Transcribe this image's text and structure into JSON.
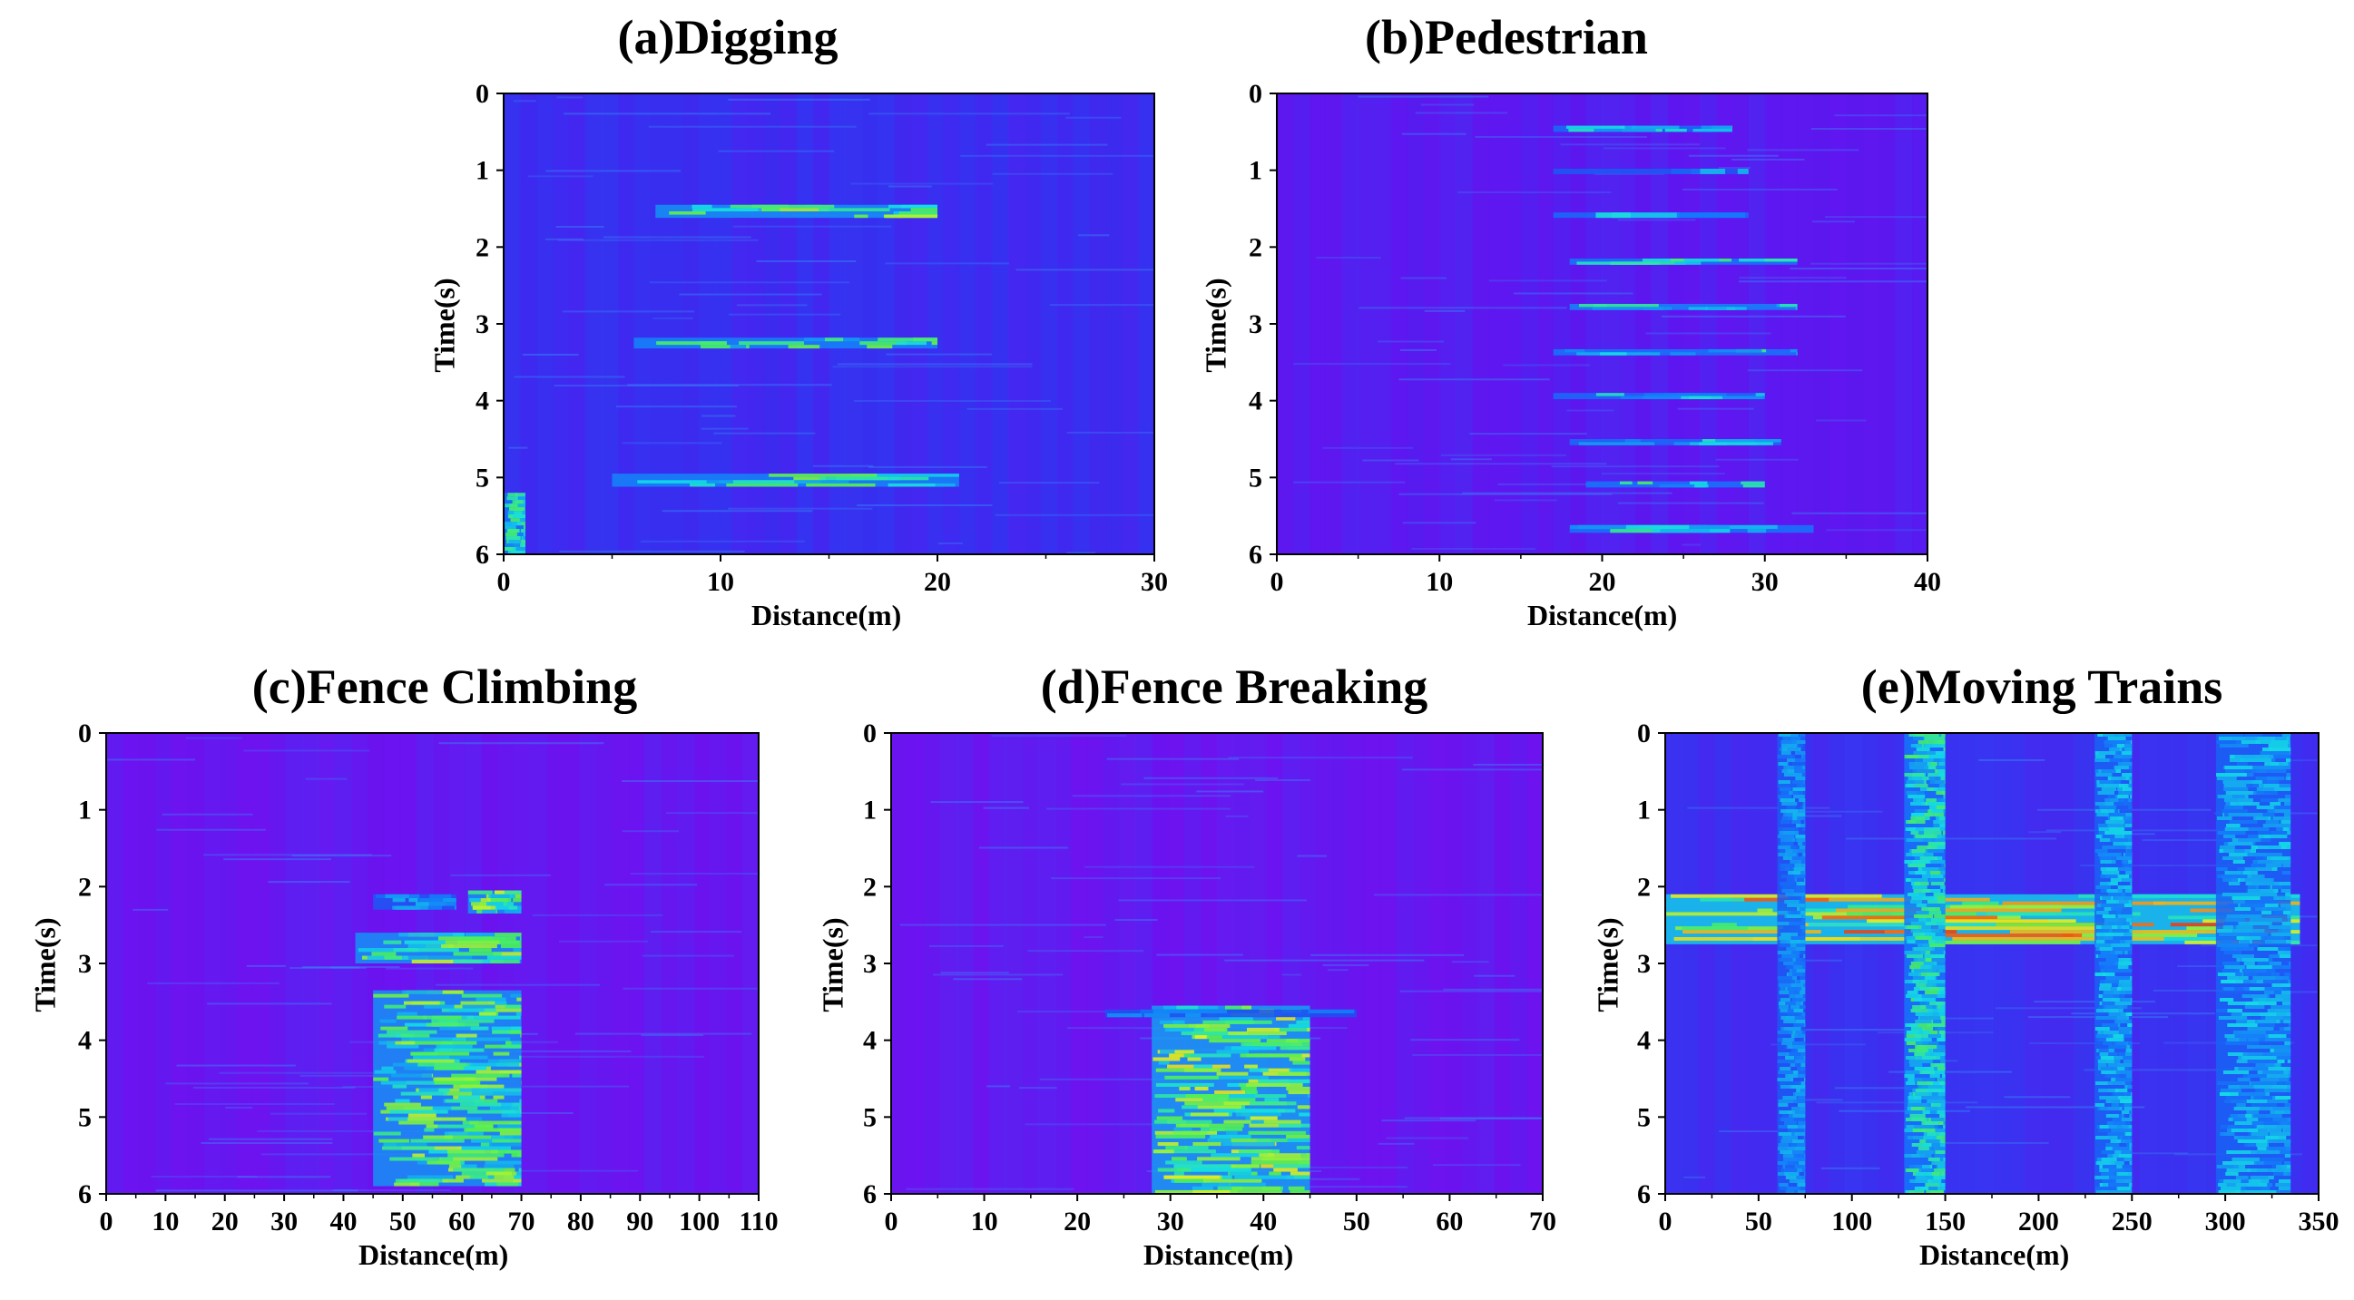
{
  "chart_data": [
    {
      "type": "heatmap",
      "title": "(a)Digging",
      "xlabel": "Distance(m)",
      "ylabel": "Time(s)",
      "xlim": [
        0,
        30
      ],
      "ylim": [
        0,
        6
      ],
      "xticks": [
        "0",
        "10",
        "20",
        "30"
      ],
      "yticks": [
        "0",
        "1",
        "2",
        "3",
        "4",
        "5",
        "6"
      ],
      "xtick_values": [
        0,
        10,
        20,
        30
      ],
      "background": "#3a2cf0",
      "events": [
        {
          "x0": 7,
          "x1": 20,
          "t0": 1.45,
          "t1": 1.62,
          "intensity": 0.55
        },
        {
          "x0": 6,
          "x1": 20,
          "t0": 3.18,
          "t1": 3.32,
          "intensity": 0.5
        },
        {
          "x0": 5,
          "x1": 21,
          "t0": 4.95,
          "t1": 5.12,
          "intensity": 0.5
        },
        {
          "x0": 0,
          "x1": 1,
          "t0": 5.2,
          "t1": 6,
          "intensity": 0.45
        }
      ]
    },
    {
      "type": "heatmap",
      "title": "(b)Pedestrian",
      "xlabel": "Distance(m)",
      "ylabel": "Time(s)",
      "xlim": [
        0,
        40
      ],
      "ylim": [
        0,
        6
      ],
      "xticks": [
        "0",
        "10",
        "20",
        "30",
        "40"
      ],
      "yticks": [
        "0",
        "1",
        "2",
        "3",
        "4",
        "5",
        "6"
      ],
      "xtick_values": [
        0,
        10,
        20,
        30,
        40
      ],
      "background": "#5b18f0",
      "events": [
        {
          "x0": 17,
          "x1": 28,
          "t0": 0.42,
          "t1": 0.5,
          "intensity": 0.4
        },
        {
          "x0": 17,
          "x1": 29,
          "t0": 0.98,
          "t1": 1.05,
          "intensity": 0.3
        },
        {
          "x0": 17,
          "x1": 29,
          "t0": 1.55,
          "t1": 1.62,
          "intensity": 0.4
        },
        {
          "x0": 18,
          "x1": 32,
          "t0": 2.15,
          "t1": 2.23,
          "intensity": 0.45
        },
        {
          "x0": 18,
          "x1": 32,
          "t0": 2.74,
          "t1": 2.82,
          "intensity": 0.5
        },
        {
          "x0": 17,
          "x1": 32,
          "t0": 3.33,
          "t1": 3.41,
          "intensity": 0.45
        },
        {
          "x0": 17,
          "x1": 30,
          "t0": 3.9,
          "t1": 3.98,
          "intensity": 0.4
        },
        {
          "x0": 18,
          "x1": 31,
          "t0": 4.5,
          "t1": 4.58,
          "intensity": 0.4
        },
        {
          "x0": 19,
          "x1": 30,
          "t0": 5.05,
          "t1": 5.13,
          "intensity": 0.45
        },
        {
          "x0": 18,
          "x1": 33,
          "t0": 5.62,
          "t1": 5.72,
          "intensity": 0.45
        }
      ]
    },
    {
      "type": "heatmap",
      "title": "(c)Fence Climbing",
      "xlabel": "Distance(m)",
      "ylabel": "Time(s)",
      "xlim": [
        0,
        110
      ],
      "ylim": [
        0,
        6
      ],
      "xticks": [
        "0",
        "10",
        "20",
        "30",
        "40",
        "50",
        "60",
        "70",
        "80",
        "90",
        "100",
        "110"
      ],
      "yticks": [
        "0",
        "1",
        "2",
        "3",
        "4",
        "5",
        "6"
      ],
      "xtick_values": [
        0,
        10,
        20,
        30,
        40,
        50,
        60,
        70,
        80,
        90,
        100,
        110
      ],
      "background": "#6a14f0",
      "events": [
        {
          "x0": 61,
          "x1": 70,
          "t0": 2.05,
          "t1": 2.35,
          "intensity": 0.55
        },
        {
          "x0": 45,
          "x1": 59,
          "t0": 2.1,
          "t1": 2.3,
          "intensity": 0.3
        },
        {
          "x0": 42,
          "x1": 70,
          "t0": 2.6,
          "t1": 3.0,
          "intensity": 0.55
        },
        {
          "x0": 45,
          "x1": 70,
          "t0": 3.35,
          "t1": 5.9,
          "intensity": 0.55
        }
      ]
    },
    {
      "type": "heatmap",
      "title": "(d)Fence Breaking",
      "xlabel": "Distance(m)",
      "ylabel": "Time(s)",
      "xlim": [
        0,
        70
      ],
      "ylim": [
        0,
        6
      ],
      "xticks": [
        "0",
        "10",
        "20",
        "30",
        "40",
        "50",
        "60",
        "70"
      ],
      "yticks": [
        "0",
        "1",
        "2",
        "3",
        "4",
        "5",
        "6"
      ],
      "xtick_values": [
        0,
        10,
        20,
        30,
        40,
        50,
        60,
        70
      ],
      "background": "#6a14f0",
      "events": [
        {
          "x0": 28,
          "x1": 45,
          "t0": 3.55,
          "t1": 4.75,
          "intensity": 0.6
        },
        {
          "x0": 28,
          "x1": 45,
          "t0": 4.75,
          "t1": 6.0,
          "intensity": 0.6
        },
        {
          "x0": 23,
          "x1": 50,
          "t0": 3.6,
          "t1": 3.7,
          "intensity": 0.25
        }
      ]
    },
    {
      "type": "heatmap",
      "title": "(e)Moving Trains",
      "xlabel": "Distance(m)",
      "ylabel": "Time(s)",
      "xlim": [
        0,
        350
      ],
      "ylim": [
        0,
        6
      ],
      "xticks": [
        "0",
        "50",
        "100",
        "150",
        "200",
        "250",
        "300",
        "350"
      ],
      "yticks": [
        "0",
        "1",
        "2",
        "3",
        "4",
        "5",
        "6"
      ],
      "xtick_values": [
        0,
        50,
        100,
        150,
        200,
        250,
        300,
        350
      ],
      "background": "#3d2ef0",
      "events": [
        {
          "x0": 0,
          "x1": 340,
          "t0": 2.1,
          "t1": 2.75,
          "intensity": 0.75
        },
        {
          "x0": 128,
          "x1": 150,
          "t0": 0,
          "t1": 6,
          "intensity": 0.45
        },
        {
          "x0": 230,
          "x1": 250,
          "t0": 0,
          "t1": 6,
          "intensity": 0.35
        },
        {
          "x0": 60,
          "x1": 75,
          "t0": 0,
          "t1": 6,
          "intensity": 0.3
        },
        {
          "x0": 295,
          "x1": 335,
          "t0": 0,
          "t1": 6,
          "intensity": 0.35
        }
      ]
    }
  ]
}
